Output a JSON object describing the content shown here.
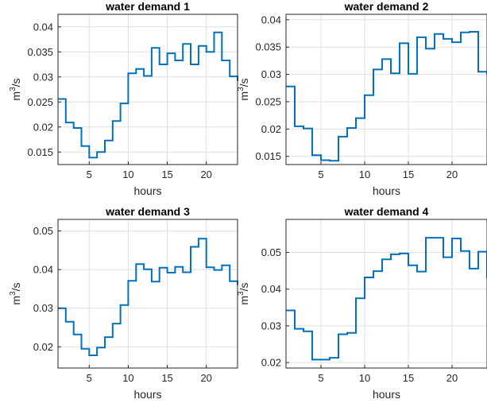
{
  "colors": {
    "series": "#0072BD",
    "grid": "#dfdfdf",
    "axis": "#262626"
  },
  "chart_data": [
    {
      "type": "line",
      "title": "water demand 1",
      "xlabel": "hours",
      "ylabel": "m3/s",
      "xlim": [
        1,
        24
      ],
      "ylim": [
        0.0125,
        0.0425
      ],
      "xticks": [
        5,
        10,
        15,
        20
      ],
      "yticks": [
        0.015,
        0.02,
        0.025,
        0.03,
        0.035,
        0.04
      ],
      "yticklabels": [
        "0.015",
        "0.02",
        "0.025",
        "0.03",
        "0.035",
        "0.04"
      ],
      "grid": true,
      "step": true,
      "x": [
        1,
        2,
        3,
        4,
        5,
        6,
        7,
        8,
        9,
        10,
        11,
        12,
        13,
        14,
        15,
        16,
        17,
        18,
        19,
        20,
        21,
        22,
        23,
        24
      ],
      "values": [
        0.0256,
        0.0209,
        0.0198,
        0.0162,
        0.0139,
        0.015,
        0.0173,
        0.0212,
        0.0247,
        0.0307,
        0.0316,
        0.0302,
        0.0358,
        0.0325,
        0.0347,
        0.0333,
        0.0366,
        0.0325,
        0.0362,
        0.035,
        0.0389,
        0.0333,
        0.0301,
        0.0292
      ]
    },
    {
      "type": "line",
      "title": "water demand 2",
      "xlabel": "hours",
      "ylabel": "m3/s",
      "xlim": [
        1,
        24
      ],
      "ylim": [
        0.0135,
        0.041
      ],
      "xticks": [
        5,
        10,
        15,
        20
      ],
      "yticks": [
        0.015,
        0.02,
        0.025,
        0.03,
        0.035,
        0.04
      ],
      "yticklabels": [
        "0.015",
        "0.02",
        "0.025",
        "0.03",
        "0.035",
        "0.04"
      ],
      "grid": true,
      "step": true,
      "x": [
        1,
        2,
        3,
        4,
        5,
        6,
        7,
        8,
        9,
        10,
        11,
        12,
        13,
        14,
        15,
        16,
        17,
        18,
        19,
        20,
        21,
        22,
        23,
        24
      ],
      "values": [
        0.0278,
        0.0205,
        0.0201,
        0.0152,
        0.0143,
        0.0142,
        0.0186,
        0.0202,
        0.022,
        0.0262,
        0.0309,
        0.0328,
        0.0302,
        0.0357,
        0.0301,
        0.0368,
        0.0347,
        0.0374,
        0.0365,
        0.0359,
        0.0377,
        0.0378,
        0.0305,
        0.03
      ]
    },
    {
      "type": "line",
      "title": "water demand 3",
      "xlabel": "hours",
      "ylabel": "m3/s",
      "xlim": [
        1,
        24
      ],
      "ylim": [
        0.0145,
        0.053
      ],
      "xticks": [
        5,
        10,
        15,
        20
      ],
      "yticks": [
        0.02,
        0.03,
        0.04,
        0.05
      ],
      "yticklabels": [
        "0.02",
        "0.03",
        "0.04",
        "0.05"
      ],
      "grid": true,
      "step": true,
      "x": [
        1,
        2,
        3,
        4,
        5,
        6,
        7,
        8,
        9,
        10,
        11,
        12,
        13,
        14,
        15,
        16,
        17,
        18,
        19,
        20,
        21,
        22,
        23,
        24
      ],
      "values": [
        0.03,
        0.0265,
        0.0232,
        0.0195,
        0.0178,
        0.0198,
        0.0225,
        0.026,
        0.0308,
        0.0371,
        0.0414,
        0.0401,
        0.0369,
        0.0405,
        0.0392,
        0.0407,
        0.0393,
        0.0459,
        0.048,
        0.0406,
        0.0399,
        0.0411,
        0.037,
        0.036
      ]
    },
    {
      "type": "line",
      "title": "water demand 4",
      "xlabel": "hours",
      "ylabel": "m3/s",
      "xlim": [
        1,
        24
      ],
      "ylim": [
        0.0185,
        0.059
      ],
      "xticks": [
        5,
        10,
        15,
        20
      ],
      "yticks": [
        0.02,
        0.03,
        0.04,
        0.05
      ],
      "yticklabels": [
        "0.02",
        "0.03",
        "0.04",
        "0.05"
      ],
      "grid": true,
      "step": true,
      "x": [
        1,
        2,
        3,
        4,
        5,
        6,
        7,
        8,
        9,
        10,
        11,
        12,
        13,
        14,
        15,
        16,
        17,
        18,
        19,
        20,
        21,
        22,
        23,
        24
      ],
      "values": [
        0.0342,
        0.0292,
        0.0285,
        0.0208,
        0.0208,
        0.0213,
        0.0277,
        0.0281,
        0.0375,
        0.0432,
        0.0449,
        0.0481,
        0.0495,
        0.0497,
        0.0465,
        0.0448,
        0.054,
        0.054,
        0.0487,
        0.0538,
        0.0504,
        0.0456,
        0.0502,
        0.043
      ]
    }
  ]
}
